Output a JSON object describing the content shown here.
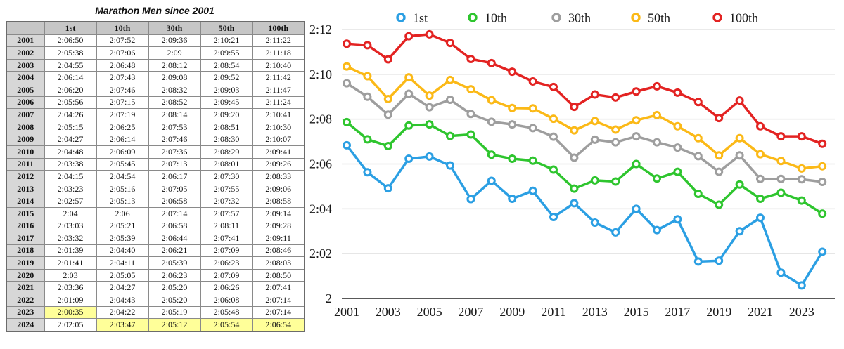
{
  "table": {
    "title": "Marathon Men since 2001",
    "corner_label": "",
    "columns": [
      "1st",
      "10th",
      "30th",
      "50th",
      "100th"
    ],
    "highlight_color": "#FFFF99",
    "highlights": [
      {
        "year": "2023",
        "col": "1st"
      },
      {
        "year": "2024",
        "col": "10th"
      },
      {
        "year": "2024",
        "col": "30th"
      },
      {
        "year": "2024",
        "col": "50th"
      },
      {
        "year": "2024",
        "col": "100th"
      }
    ]
  },
  "chart_data": {
    "type": "line",
    "title": "",
    "xlabel": "",
    "ylabel": "",
    "x": [
      2001,
      2002,
      2003,
      2004,
      2005,
      2006,
      2007,
      2008,
      2009,
      2010,
      2011,
      2012,
      2013,
      2014,
      2015,
      2016,
      2017,
      2018,
      2019,
      2020,
      2021,
      2022,
      2023,
      2024
    ],
    "series": [
      {
        "name": "1st",
        "color": "#2B9FE3",
        "values": [
          "2:06:50",
          "2:05:38",
          "2:04:55",
          "2:06:14",
          "2:06:20",
          "2:05:56",
          "2:04:26",
          "2:05:15",
          "2:04:27",
          "2:04:48",
          "2:03:38",
          "2:04:15",
          "2:03:23",
          "2:02:57",
          "2:04",
          "2:03:03",
          "2:03:32",
          "2:01:39",
          "2:01:41",
          "2:03",
          "2:03:36",
          "2:01:09",
          "2:00:35",
          "2:02:05"
        ]
      },
      {
        "name": "10th",
        "color": "#2EC52E",
        "values": [
          "2:07:52",
          "2:07:06",
          "2:06:48",
          "2:07:43",
          "2:07:46",
          "2:07:15",
          "2:07:19",
          "2:06:25",
          "2:06:14",
          "2:06:09",
          "2:05:45",
          "2:04:54",
          "2:05:16",
          "2:05:13",
          "2:06",
          "2:05:21",
          "2:05:39",
          "2:04:40",
          "2:04:11",
          "2:05:05",
          "2:04:27",
          "2:04:43",
          "2:04:22",
          "2:03:47"
        ]
      },
      {
        "name": "30th",
        "color": "#9E9E9E",
        "values": [
          "2:09:36",
          "2:09",
          "2:08:12",
          "2:09:08",
          "2:08:32",
          "2:08:52",
          "2:08:14",
          "2:07:53",
          "2:07:46",
          "2:07:36",
          "2:07:13",
          "2:06:17",
          "2:07:05",
          "2:06:58",
          "2:07:14",
          "2:06:58",
          "2:06:44",
          "2:06:21",
          "2:05:39",
          "2:06:23",
          "2:05:20",
          "2:05:20",
          "2:05:19",
          "2:05:12"
        ]
      },
      {
        "name": "50th",
        "color": "#FBB917",
        "values": [
          "2:10:21",
          "2:09:55",
          "2:08:54",
          "2:09:52",
          "2:09:03",
          "2:09:45",
          "2:09:20",
          "2:08:51",
          "2:08:30",
          "2:08:29",
          "2:08:01",
          "2:07:30",
          "2:07:55",
          "2:07:32",
          "2:07:57",
          "2:08:11",
          "2:07:41",
          "2:07:09",
          "2:06:23",
          "2:07:09",
          "2:06:26",
          "2:06:08",
          "2:05:48",
          "2:05:54"
        ]
      },
      {
        "name": "100th",
        "color": "#E32322",
        "values": [
          "2:11:22",
          "2:11:18",
          "2:10:40",
          "2:11:42",
          "2:11:47",
          "2:11:24",
          "2:10:41",
          "2:10:30",
          "2:10:07",
          "2:09:41",
          "2:09:26",
          "2:08:33",
          "2:09:06",
          "2:08:58",
          "2:09:14",
          "2:09:28",
          "2:09:11",
          "2:08:46",
          "2:08:03",
          "2:08:50",
          "2:07:41",
          "2:07:14",
          "2:07:14",
          "2:06:54"
        ]
      }
    ],
    "y_ticks": [
      "2:12",
      "2:10",
      "2:08",
      "2:06",
      "2:04",
      "2:02",
      "2"
    ],
    "y_ticks_minutes_after_2h": [
      12,
      10,
      8,
      6,
      4,
      2,
      0
    ],
    "x_tick_labels": [
      "2001",
      "2003",
      "2005",
      "2007",
      "2009",
      "2011",
      "2013",
      "2015",
      "2017",
      "2019",
      "2021",
      "2023"
    ],
    "ylim_minutes_after_2h": [
      0,
      12
    ],
    "grid": true,
    "legend_position": "top",
    "gridline_color": "#E3E3E3",
    "axis_color": "#595959"
  }
}
